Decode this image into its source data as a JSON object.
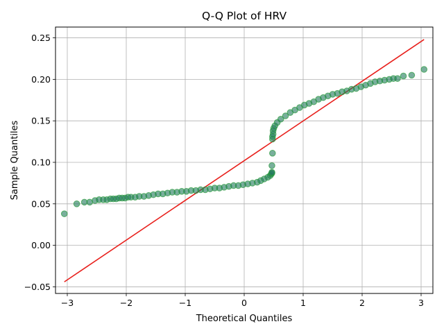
{
  "chart_data": {
    "type": "scatter",
    "title": "Q-Q Plot of HRV",
    "xlabel": "Theoretical Quantiles",
    "ylabel": "Sample Quantiles",
    "xlim": [
      -3.2,
      3.2
    ],
    "ylim": [
      -0.058,
      0.263
    ],
    "grid": true,
    "x_ticks": [
      -3,
      -2,
      -1,
      0,
      1,
      2,
      3
    ],
    "x_tick_labels": [
      "−3",
      "−2",
      "−1",
      "0",
      "1",
      "2",
      "3"
    ],
    "y_ticks": [
      -0.05,
      0.0,
      0.05,
      0.1,
      0.15,
      0.2,
      0.25
    ],
    "y_tick_labels": [
      "−0.05",
      "0.00",
      "0.05",
      "0.10",
      "0.15",
      "0.20",
      "0.25"
    ],
    "reference_line": {
      "x": [
        -3.05,
        3.05
      ],
      "y": [
        -0.044,
        0.248
      ],
      "color": "#e8201c"
    },
    "marker_face_color": "#1f7a5a",
    "marker_edge_color": "#2a9d3a",
    "series": [
      {
        "points": [
          [
            -3.05,
            0.038
          ],
          [
            -2.84,
            0.05
          ],
          [
            -2.71,
            0.052
          ],
          [
            -2.62,
            0.052
          ],
          [
            -2.53,
            0.054
          ],
          [
            -2.46,
            0.055
          ],
          [
            -2.39,
            0.055
          ],
          [
            -2.33,
            0.055
          ],
          [
            -2.27,
            0.056
          ],
          [
            -2.22,
            0.056
          ],
          [
            -2.17,
            0.056
          ],
          [
            -2.12,
            0.057
          ],
          [
            -2.07,
            0.057
          ],
          [
            -2.02,
            0.057
          ],
          [
            -1.97,
            0.058
          ],
          [
            -1.92,
            0.058
          ],
          [
            -1.85,
            0.058
          ],
          [
            -1.78,
            0.059
          ],
          [
            -1.7,
            0.059
          ],
          [
            -1.62,
            0.06
          ],
          [
            -1.54,
            0.061
          ],
          [
            -1.46,
            0.062
          ],
          [
            -1.38,
            0.062
          ],
          [
            -1.3,
            0.063
          ],
          [
            -1.22,
            0.064
          ],
          [
            -1.14,
            0.064
          ],
          [
            -1.06,
            0.065
          ],
          [
            -0.98,
            0.065
          ],
          [
            -0.9,
            0.066
          ],
          [
            -0.82,
            0.066
          ],
          [
            -0.74,
            0.067
          ],
          [
            -0.66,
            0.067
          ],
          [
            -0.58,
            0.068
          ],
          [
            -0.5,
            0.069
          ],
          [
            -0.42,
            0.069
          ],
          [
            -0.34,
            0.07
          ],
          [
            -0.26,
            0.071
          ],
          [
            -0.18,
            0.072
          ],
          [
            -0.1,
            0.072
          ],
          [
            -0.02,
            0.073
          ],
          [
            0.06,
            0.074
          ],
          [
            0.14,
            0.075
          ],
          [
            0.22,
            0.076
          ],
          [
            0.28,
            0.078
          ],
          [
            0.34,
            0.08
          ],
          [
            0.4,
            0.082
          ],
          [
            0.44,
            0.084
          ],
          [
            0.46,
            0.086
          ],
          [
            0.47,
            0.087
          ],
          [
            0.47,
            0.088
          ],
          [
            0.47,
            0.096
          ],
          [
            0.48,
            0.111
          ],
          [
            0.48,
            0.128
          ],
          [
            0.48,
            0.131
          ],
          [
            0.49,
            0.134
          ],
          [
            0.49,
            0.138
          ],
          [
            0.5,
            0.141
          ],
          [
            0.52,
            0.144
          ],
          [
            0.56,
            0.148
          ],
          [
            0.62,
            0.152
          ],
          [
            0.7,
            0.156
          ],
          [
            0.78,
            0.16
          ],
          [
            0.86,
            0.163
          ],
          [
            0.94,
            0.166
          ],
          [
            1.02,
            0.169
          ],
          [
            1.1,
            0.171
          ],
          [
            1.18,
            0.173
          ],
          [
            1.26,
            0.176
          ],
          [
            1.34,
            0.178
          ],
          [
            1.42,
            0.18
          ],
          [
            1.5,
            0.182
          ],
          [
            1.58,
            0.183
          ],
          [
            1.66,
            0.185
          ],
          [
            1.74,
            0.186
          ],
          [
            1.82,
            0.188
          ],
          [
            1.9,
            0.189
          ],
          [
            1.98,
            0.191
          ],
          [
            2.06,
            0.193
          ],
          [
            2.14,
            0.195
          ],
          [
            2.22,
            0.197
          ],
          [
            2.3,
            0.198
          ],
          [
            2.38,
            0.199
          ],
          [
            2.46,
            0.2
          ],
          [
            2.53,
            0.201
          ],
          [
            2.6,
            0.201
          ],
          [
            2.7,
            0.204
          ],
          [
            2.84,
            0.205
          ],
          [
            3.05,
            0.212
          ]
        ]
      }
    ]
  }
}
